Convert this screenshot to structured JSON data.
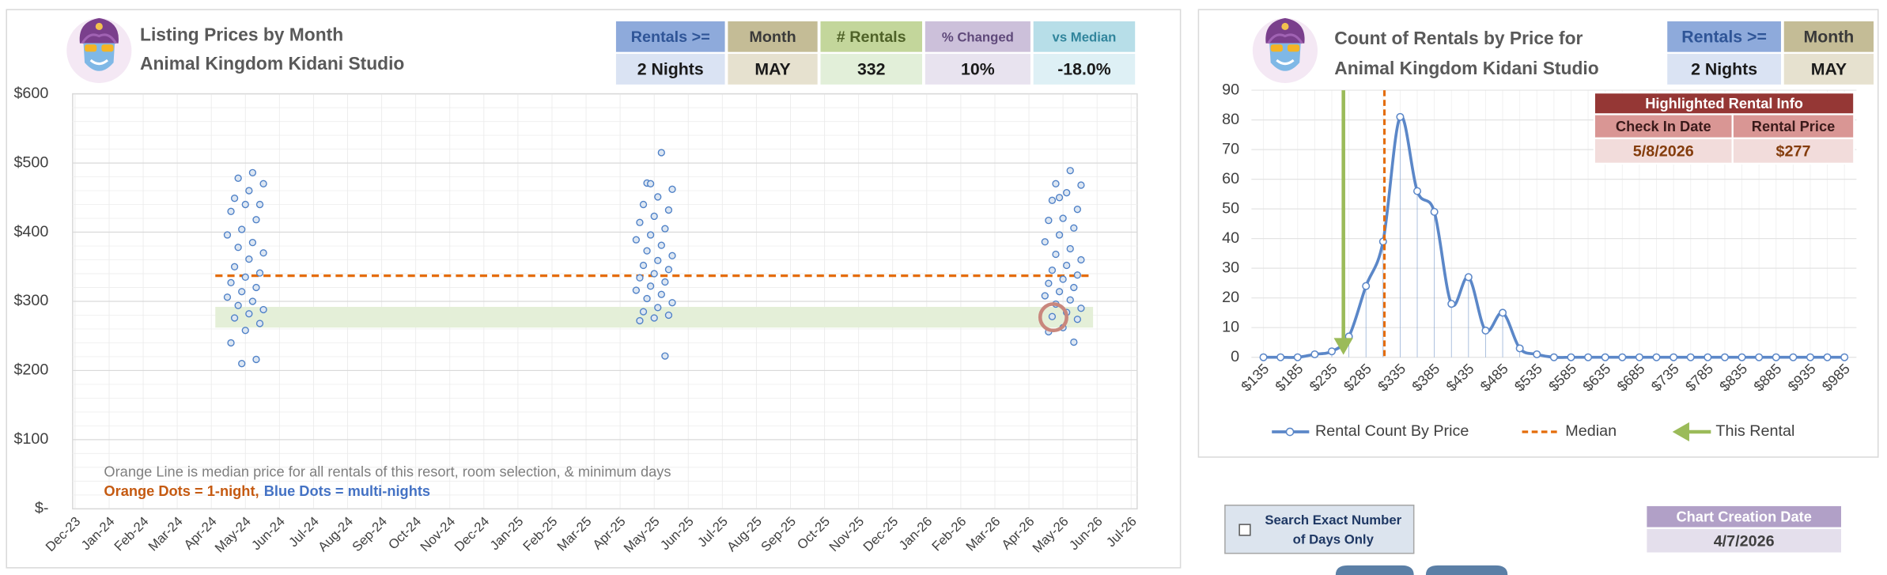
{
  "chart_data": [
    {
      "type": "scatter",
      "title": "Listing Prices by Month",
      "subtitle": "Animal Kingdom Kidani Studio",
      "xticks": [
        "Dec-23",
        "Jan-24",
        "Feb-24",
        "Mar-24",
        "Apr-24",
        "May-24",
        "Jun-24",
        "Jul-24",
        "Aug-24",
        "Sep-24",
        "Oct-24",
        "Nov-24",
        "Dec-24",
        "Jan-25",
        "Feb-25",
        "Mar-25",
        "Apr-25",
        "May-25",
        "Jun-25",
        "Jul-25",
        "Aug-25",
        "Sep-25",
        "Oct-25",
        "Nov-25",
        "Dec-25",
        "Jan-26",
        "Feb-26",
        "Mar-26",
        "Apr-26",
        "May-26",
        "Jun-26",
        "Jul-26"
      ],
      "ylim": [
        0,
        600
      ],
      "yticks": [
        {
          "value": 0,
          "label": "$-"
        },
        {
          "value": 100,
          "label": "$100"
        },
        {
          "value": 200,
          "label": "$200"
        },
        {
          "value": 300,
          "label": "$300"
        },
        {
          "value": 400,
          "label": "$400"
        },
        {
          "value": 500,
          "label": "$500"
        },
        {
          "value": 600,
          "label": "$600"
        }
      ],
      "grid": true,
      "color": "#4f81c7",
      "x": [
        "May-24",
        "May-24",
        "May-24",
        "May-24",
        "May-24",
        "May-24",
        "May-24",
        "May-24",
        "May-24",
        "May-24",
        "May-24",
        "May-24",
        "May-24",
        "May-24",
        "May-24",
        "May-24",
        "May-24",
        "May-24",
        "May-24",
        "May-24",
        "May-24",
        "May-24",
        "May-24",
        "May-24",
        "May-24",
        "May-24",
        "May-24",
        "May-24",
        "May-24",
        "May-24",
        "May-24",
        "May-24",
        "May-25",
        "May-25",
        "May-25",
        "May-25",
        "May-25",
        "May-25",
        "May-25",
        "May-25",
        "May-25",
        "May-25",
        "May-25",
        "May-25",
        "May-25",
        "May-25",
        "May-25",
        "May-25",
        "May-25",
        "May-25",
        "May-25",
        "May-25",
        "May-25",
        "May-25",
        "May-25",
        "May-25",
        "May-25",
        "May-25",
        "May-25",
        "May-25",
        "May-25",
        "May-25",
        "May-25",
        "May-25",
        "May-26",
        "May-26",
        "May-26",
        "May-26",
        "May-26",
        "May-26",
        "May-26",
        "May-26",
        "May-26",
        "May-26",
        "May-26",
        "May-26",
        "May-26",
        "May-26",
        "May-26",
        "May-26",
        "May-26",
        "May-26",
        "May-26",
        "May-26",
        "May-26",
        "May-26",
        "May-26",
        "May-26",
        "May-26",
        "May-26",
        "May-26",
        "May-26",
        "May-26",
        "May-26",
        "May-26",
        "May-26"
      ],
      "values": [
        486,
        478,
        470,
        460,
        449,
        440,
        440,
        430,
        418,
        404,
        396,
        385,
        378,
        370,
        361,
        350,
        341,
        335,
        327,
        320,
        314,
        306,
        300,
        294,
        288,
        282,
        276,
        268,
        258,
        240,
        216,
        210,
        515,
        471,
        462,
        451,
        440,
        432,
        423,
        414,
        405,
        396,
        389,
        381,
        373,
        366,
        359,
        352,
        346,
        340,
        334,
        328,
        322,
        316,
        310,
        304,
        298,
        291,
        285,
        280,
        276,
        272,
        221,
        470,
        489,
        470,
        468,
        457,
        446,
        433,
        420,
        417,
        406,
        396,
        386,
        376,
        368,
        360,
        352,
        345,
        338,
        332,
        326,
        320,
        314,
        308,
        302,
        296,
        290,
        284,
        278,
        274,
        262,
        256,
        241,
        450
      ],
      "median": {
        "value": 337,
        "color": "#e46c0a"
      },
      "band": {
        "from": 262,
        "to": 292,
        "color": "#e4efd8"
      },
      "highlight": {
        "x": "May-26",
        "value": 277,
        "color": "#c9877d"
      },
      "annotations": [
        {
          "text": "Orange Line is median price for all rentals of this resort, room selection, & minimum days",
          "color": "#7f7f7f"
        },
        {
          "text": "Orange Dots = 1-night,",
          "color": "#c55a11"
        },
        {
          "text": "Blue Dots = multi-nights",
          "color": "#4472c4"
        }
      ]
    },
    {
      "type": "line",
      "title": "Count of Rentals by Price for",
      "subtitle": "Animal Kingdom Kidani Studio",
      "categories": [
        "$135",
        null,
        "$185",
        null,
        "$235",
        null,
        "$285",
        null,
        "$335",
        null,
        "$385",
        null,
        "$435",
        null,
        "$485",
        null,
        "$535",
        null,
        "$585",
        null,
        "$635",
        null,
        "$685",
        null,
        "$735",
        null,
        "$785",
        null,
        "$835",
        null,
        "$885",
        null,
        "$935",
        null,
        "$985"
      ],
      "series": [
        {
          "name": "Rental Count By Price",
          "color": "#5b87c8",
          "values": [
            0,
            0,
            0,
            1,
            2,
            7,
            24,
            39,
            81,
            56,
            49,
            18,
            27,
            9,
            15,
            3,
            1,
            0,
            0,
            0,
            0,
            0,
            0,
            0,
            0,
            0,
            0,
            0,
            0,
            0,
            0,
            0,
            0,
            0,
            0
          ]
        }
      ],
      "ylim": [
        0,
        90
      ],
      "yticks": [
        0,
        10,
        20,
        30,
        40,
        50,
        60,
        70,
        80,
        90
      ],
      "grid": true,
      "legend": "bottom",
      "median": {
        "name": "Median",
        "value": 337,
        "color": "#e46c0a"
      },
      "this_rental": {
        "name": "This Rental",
        "value": 277,
        "color": "#9bbb59"
      }
    }
  ],
  "left_info": {
    "headers": [
      "Rentals >=",
      "Month",
      "# Rentals",
      "% Changed",
      "vs Median"
    ],
    "values": [
      "2 Nights",
      "MAY",
      "332",
      "10%",
      "-18.0%"
    ]
  },
  "right_info": {
    "headers": [
      "Rentals >=",
      "Month"
    ],
    "values": [
      "2 Nights",
      "MAY"
    ]
  },
  "highlighted_rental": {
    "title": "Highlighted Rental Info",
    "headers": [
      "Check In Date",
      "Rental Price"
    ],
    "values": [
      "5/8/2026",
      "$277"
    ]
  },
  "exact_days_checkbox": {
    "lines": [
      "Search Exact Number",
      "of Days Only"
    ]
  },
  "creation_date": {
    "label": "Chart Creation Date",
    "value": "4/7/2026"
  }
}
